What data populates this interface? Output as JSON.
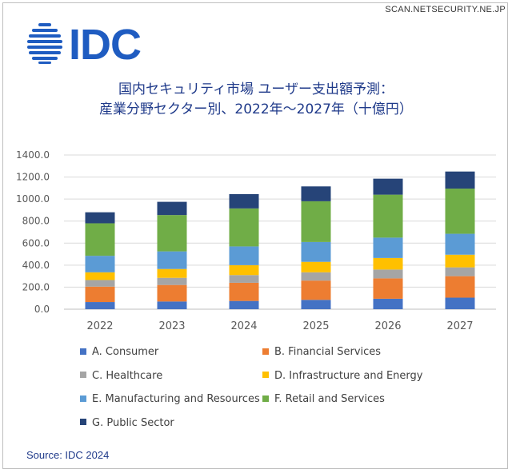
{
  "watermark": "SCAN.NETSECURITY.NE.JP",
  "logo": {
    "text": "IDC",
    "color": "#1f5cc1"
  },
  "title_line1": "国内セキュリティ市場 ユーザー支出額予測：",
  "title_line2": "産業分野セクター別、2022年～2027年（十億円）",
  "source": "Source: IDC 2024",
  "chart_data": {
    "type": "bar",
    "stacked": true,
    "title": "国内セキュリティ市場 ユーザー支出額予測：産業分野セクター別、2022年～2027年（十億円）",
    "categories": [
      "2022",
      "2023",
      "2024",
      "2025",
      "2026",
      "2027"
    ],
    "ylim": [
      0,
      1400
    ],
    "yticks": [
      "0.0",
      "200.0",
      "400.0",
      "600.0",
      "800.0",
      "1000.0",
      "1200.0",
      "1400.0"
    ],
    "grid": true,
    "legend_position": "bottom",
    "series": [
      {
        "name": "A. Consumer",
        "color": "#4472c4",
        "values": [
          65,
          70,
          75,
          85,
          95,
          105
        ]
      },
      {
        "name": "B. Financial Services",
        "color": "#ed7d31",
        "values": [
          140,
          150,
          165,
          175,
          185,
          195
        ]
      },
      {
        "name": "C. Healthcare",
        "color": "#a5a5a5",
        "values": [
          60,
          65,
          70,
          75,
          80,
          80
        ]
      },
      {
        "name": "D. Infrastructure and Energy",
        "color": "#ffc000",
        "values": [
          70,
          80,
          90,
          95,
          105,
          115
        ]
      },
      {
        "name": "E. Manufacturing and Resources",
        "color": "#5b9bd5",
        "values": [
          150,
          160,
          170,
          180,
          185,
          190
        ]
      },
      {
        "name": "F. Retail and Services",
        "color": "#70ad47",
        "values": [
          295,
          330,
          345,
          370,
          390,
          410
        ]
      },
      {
        "name": "G. Public Sector",
        "color": "#264478",
        "values": [
          100,
          120,
          130,
          135,
          145,
          155
        ]
      }
    ]
  }
}
